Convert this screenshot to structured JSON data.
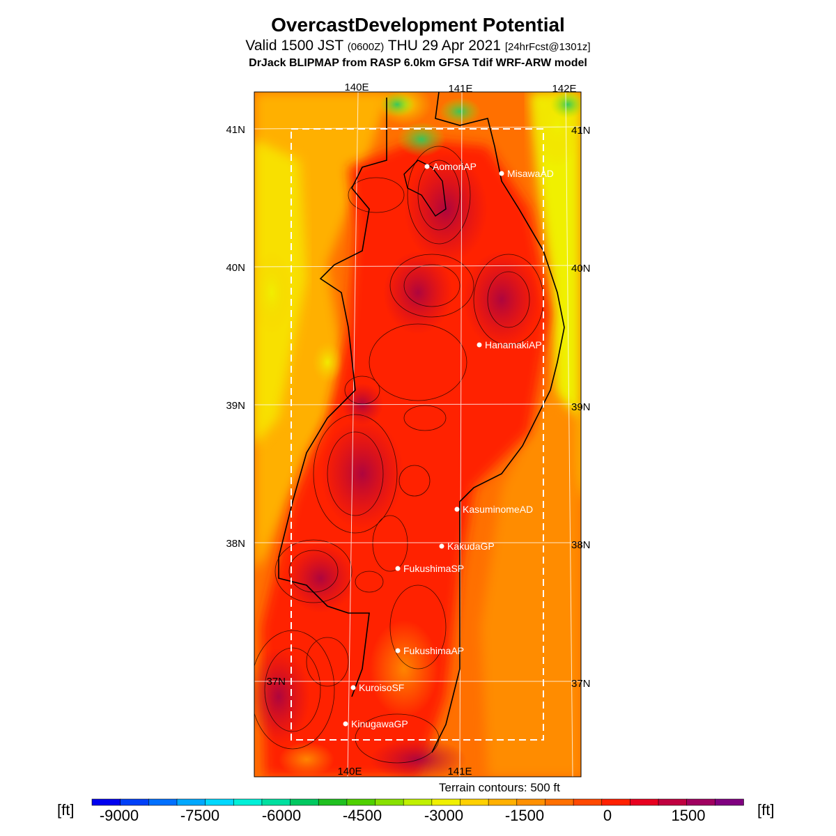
{
  "header": {
    "title": "OvercastDevelopment Potential",
    "subtitle_main": "Valid 1500 JST",
    "subtitle_utc": "(0600Z)",
    "subtitle_date": "THU 29 Apr 2021",
    "subtitle_fcst": "[24hrFcst@1301z]",
    "model_line": "DrJack BLIPMAP from RASP 6.0km GFSA Tdif WRF-ARW model"
  },
  "map": {
    "lon_labels_top": [
      "140E",
      "141E",
      "142E"
    ],
    "lon_labels_bottom": [
      "140E",
      "141E"
    ],
    "lat_labels": [
      "41N",
      "40N",
      "39N",
      "38N",
      "37N"
    ],
    "stations": [
      {
        "name": "AomoriAP"
      },
      {
        "name": "MisawaAD"
      },
      {
        "name": "HanamakiAP"
      },
      {
        "name": "KasuminomeAD"
      },
      {
        "name": "KakudaGP"
      },
      {
        "name": "FukushimaSP"
      },
      {
        "name": "FukushimaAP"
      },
      {
        "name": "KuroisoSF"
      },
      {
        "name": "KinugawaGP"
      }
    ],
    "terrain_note": "Terrain contours: 500 ft"
  },
  "colorbar": {
    "unit": "[ft]",
    "tick_labels": [
      "-9000",
      "-7500",
      "-6000",
      "-4500",
      "-3000",
      "-1500",
      "0",
      "1500"
    ],
    "colors": [
      "#0000f0",
      "#0040f8",
      "#0070ff",
      "#00a8ff",
      "#00d8ff",
      "#00f0d8",
      "#00e0a0",
      "#00c860",
      "#20c020",
      "#50d000",
      "#88e000",
      "#c0f000",
      "#f0f000",
      "#ffd000",
      "#ffb000",
      "#ff9000",
      "#ff7000",
      "#ff4800",
      "#ff2000",
      "#e80020",
      "#c00040",
      "#a00060",
      "#800080"
    ]
  }
}
